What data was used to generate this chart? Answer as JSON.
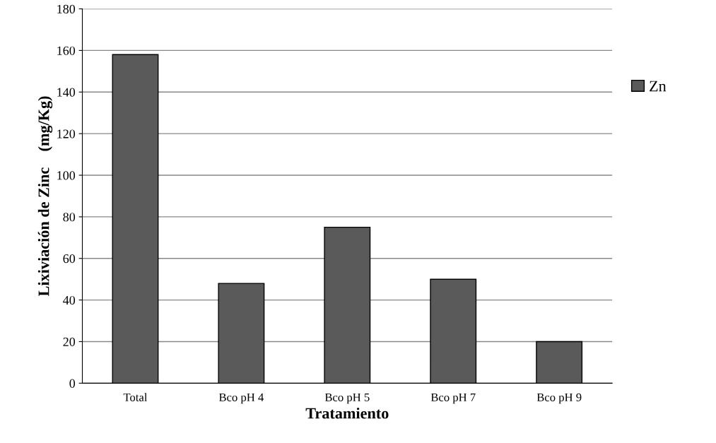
{
  "chart_data": {
    "type": "bar",
    "xlabel": "Tratamiento",
    "ylabel": "Lixiviación de Zinc    (mg/Kg)",
    "categories": [
      "Total",
      "Bco pH 4",
      "Bco pH 5",
      "Bco pH 7",
      "Bco pH 9"
    ],
    "series": [
      {
        "name": "Zn",
        "color": "#5a5a5a",
        "values": [
          158,
          48,
          75,
          50,
          20
        ]
      }
    ],
    "ylim": [
      0,
      180
    ],
    "yticks": [
      0,
      20,
      40,
      60,
      80,
      100,
      120,
      140,
      160,
      180
    ],
    "grid": "y",
    "legend": "right"
  }
}
